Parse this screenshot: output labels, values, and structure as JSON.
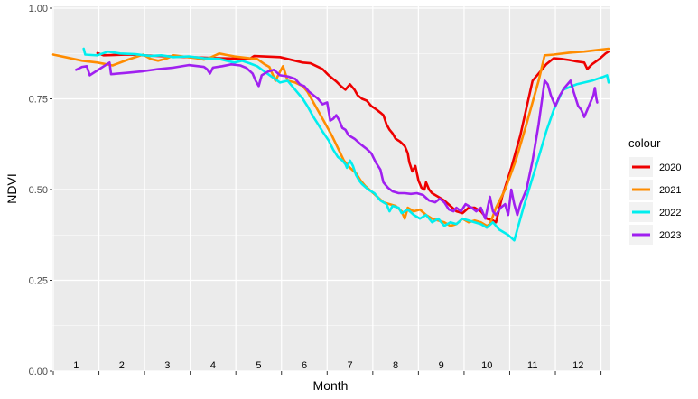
{
  "chart_data": {
    "type": "line",
    "title": "",
    "xlabel": "Month",
    "ylabel": "NDVI",
    "ylim": [
      0,
      1
    ],
    "yticks": [
      "0.00",
      "0.25",
      "0.50",
      "0.75",
      "1.00"
    ],
    "ytick_values": [
      0,
      0.25,
      0.5,
      0.75,
      1.0
    ],
    "xlim": [
      1,
      366
    ],
    "month_labels": [
      "1",
      "2",
      "3",
      "4",
      "5",
      "6",
      "7",
      "8",
      "9",
      "10",
      "11",
      "12"
    ],
    "month_label_positions": [
      16,
      46,
      76,
      106,
      136,
      166,
      196,
      226,
      256,
      286,
      316,
      346
    ],
    "month_boundaries": [
      31,
      61,
      91,
      121,
      151,
      181,
      211,
      241,
      271,
      301,
      331,
      361
    ],
    "grid": true,
    "legend": {
      "title": "colour",
      "position": "right"
    },
    "series": [
      {
        "name": "2020",
        "color": "#EE0000",
        "points": [
          [
            30,
            0.876
          ],
          [
            34,
            0.87
          ],
          [
            50,
            0.872
          ],
          [
            70,
            0.868
          ],
          [
            90,
            0.865
          ],
          [
            110,
            0.862
          ],
          [
            130,
            0.86
          ],
          [
            133,
            0.868
          ],
          [
            150,
            0.865
          ],
          [
            160,
            0.855
          ],
          [
            165,
            0.85
          ],
          [
            170,
            0.848
          ],
          [
            175,
            0.838
          ],
          [
            178,
            0.832
          ],
          [
            182,
            0.815
          ],
          [
            187,
            0.798
          ],
          [
            190,
            0.785
          ],
          [
            193,
            0.775
          ],
          [
            196,
            0.79
          ],
          [
            199,
            0.775
          ],
          [
            201,
            0.76
          ],
          [
            204,
            0.75
          ],
          [
            207,
            0.745
          ],
          [
            210,
            0.73
          ],
          [
            213,
            0.722
          ],
          [
            216,
            0.712
          ],
          [
            218,
            0.705
          ],
          [
            220,
            0.68
          ],
          [
            222,
            0.665
          ],
          [
            224,
            0.655
          ],
          [
            226,
            0.64
          ],
          [
            229,
            0.632
          ],
          [
            232,
            0.62
          ],
          [
            234,
            0.6
          ],
          [
            235,
            0.575
          ],
          [
            237,
            0.55
          ],
          [
            239,
            0.565
          ],
          [
            241,
            0.525
          ],
          [
            243,
            0.505
          ],
          [
            245,
            0.5
          ],
          [
            246,
            0.52
          ],
          [
            248,
            0.5
          ],
          [
            250,
            0.49
          ],
          [
            254,
            0.48
          ],
          [
            258,
            0.47
          ],
          [
            262,
            0.455
          ],
          [
            266,
            0.44
          ],
          [
            270,
            0.435
          ],
          [
            274,
            0.45
          ],
          [
            278,
            0.45
          ],
          [
            282,
            0.44
          ],
          [
            286,
            0.42
          ],
          [
            290,
            0.415
          ],
          [
            292,
            0.41
          ],
          [
            296,
            0.48
          ],
          [
            302,
            0.56
          ],
          [
            308,
            0.65
          ],
          [
            312,
            0.725
          ],
          [
            316,
            0.8
          ],
          [
            320,
            0.82
          ],
          [
            325,
            0.845
          ],
          [
            330,
            0.862
          ],
          [
            335,
            0.86
          ],
          [
            340,
            0.857
          ],
          [
            345,
            0.853
          ],
          [
            350,
            0.85
          ],
          [
            352,
            0.832
          ],
          [
            355,
            0.845
          ],
          [
            360,
            0.86
          ],
          [
            364,
            0.875
          ],
          [
            366,
            0.88
          ]
        ]
      },
      {
        "name": "2021",
        "color": "#FF8C00",
        "points": [
          [
            1,
            0.872
          ],
          [
            20,
            0.855
          ],
          [
            30,
            0.85
          ],
          [
            40,
            0.842
          ],
          [
            50,
            0.858
          ],
          [
            60,
            0.872
          ],
          [
            65,
            0.86
          ],
          [
            70,
            0.855
          ],
          [
            76,
            0.862
          ],
          [
            80,
            0.87
          ],
          [
            95,
            0.862
          ],
          [
            100,
            0.858
          ],
          [
            105,
            0.865
          ],
          [
            110,
            0.875
          ],
          [
            120,
            0.867
          ],
          [
            130,
            0.862
          ],
          [
            135,
            0.86
          ],
          [
            140,
            0.845
          ],
          [
            143,
            0.838
          ],
          [
            147,
            0.8
          ],
          [
            150,
            0.825
          ],
          [
            152,
            0.84
          ],
          [
            155,
            0.8
          ],
          [
            160,
            0.795
          ],
          [
            165,
            0.785
          ],
          [
            168,
            0.77
          ],
          [
            172,
            0.74
          ],
          [
            176,
            0.71
          ],
          [
            180,
            0.68
          ],
          [
            184,
            0.65
          ],
          [
            188,
            0.615
          ],
          [
            192,
            0.58
          ],
          [
            196,
            0.56
          ],
          [
            200,
            0.545
          ],
          [
            203,
            0.525
          ],
          [
            206,
            0.51
          ],
          [
            210,
            0.495
          ],
          [
            214,
            0.48
          ],
          [
            218,
            0.465
          ],
          [
            222,
            0.46
          ],
          [
            226,
            0.455
          ],
          [
            230,
            0.44
          ],
          [
            232,
            0.42
          ],
          [
            234,
            0.45
          ],
          [
            238,
            0.44
          ],
          [
            242,
            0.445
          ],
          [
            246,
            0.43
          ],
          [
            250,
            0.42
          ],
          [
            254,
            0.415
          ],
          [
            258,
            0.41
          ],
          [
            262,
            0.4
          ],
          [
            266,
            0.405
          ],
          [
            270,
            0.42
          ],
          [
            274,
            0.41
          ],
          [
            278,
            0.415
          ],
          [
            282,
            0.41
          ],
          [
            286,
            0.4
          ],
          [
            288,
            0.405
          ],
          [
            292,
            0.45
          ],
          [
            298,
            0.5
          ],
          [
            305,
            0.58
          ],
          [
            312,
            0.68
          ],
          [
            320,
            0.8
          ],
          [
            324,
            0.87
          ],
          [
            330,
            0.872
          ],
          [
            340,
            0.877
          ],
          [
            350,
            0.88
          ],
          [
            360,
            0.885
          ],
          [
            366,
            0.888
          ]
        ]
      },
      {
        "name": "2022",
        "color": "#00EEEE",
        "points": [
          [
            21,
            0.888
          ],
          [
            22,
            0.872
          ],
          [
            30,
            0.87
          ],
          [
            37,
            0.88
          ],
          [
            45,
            0.875
          ],
          [
            55,
            0.873
          ],
          [
            65,
            0.868
          ],
          [
            72,
            0.87
          ],
          [
            80,
            0.865
          ],
          [
            90,
            0.867
          ],
          [
            100,
            0.862
          ],
          [
            110,
            0.86
          ],
          [
            120,
            0.85
          ],
          [
            125,
            0.855
          ],
          [
            130,
            0.848
          ],
          [
            135,
            0.84
          ],
          [
            140,
            0.825
          ],
          [
            145,
            0.81
          ],
          [
            150,
            0.795
          ],
          [
            155,
            0.8
          ],
          [
            160,
            0.775
          ],
          [
            165,
            0.75
          ],
          [
            168,
            0.73
          ],
          [
            172,
            0.7
          ],
          [
            175,
            0.68
          ],
          [
            178,
            0.66
          ],
          [
            182,
            0.635
          ],
          [
            185,
            0.61
          ],
          [
            188,
            0.59
          ],
          [
            191,
            0.58
          ],
          [
            193,
            0.57
          ],
          [
            194,
            0.56
          ],
          [
            196,
            0.58
          ],
          [
            198,
            0.565
          ],
          [
            200,
            0.54
          ],
          [
            202,
            0.525
          ],
          [
            204,
            0.515
          ],
          [
            208,
            0.5
          ],
          [
            212,
            0.49
          ],
          [
            216,
            0.47
          ],
          [
            220,
            0.46
          ],
          [
            222,
            0.44
          ],
          [
            224,
            0.455
          ],
          [
            228,
            0.45
          ],
          [
            230,
            0.435
          ],
          [
            234,
            0.445
          ],
          [
            238,
            0.43
          ],
          [
            242,
            0.42
          ],
          [
            246,
            0.43
          ],
          [
            250,
            0.41
          ],
          [
            254,
            0.42
          ],
          [
            258,
            0.4
          ],
          [
            262,
            0.41
          ],
          [
            266,
            0.405
          ],
          [
            270,
            0.42
          ],
          [
            274,
            0.415
          ],
          [
            278,
            0.41
          ],
          [
            282,
            0.405
          ],
          [
            286,
            0.395
          ],
          [
            290,
            0.41
          ],
          [
            294,
            0.39
          ],
          [
            300,
            0.375
          ],
          [
            304,
            0.36
          ],
          [
            310,
            0.45
          ],
          [
            318,
            0.56
          ],
          [
            325,
            0.66
          ],
          [
            330,
            0.72
          ],
          [
            336,
            0.775
          ],
          [
            345,
            0.79
          ],
          [
            355,
            0.8
          ],
          [
            362,
            0.81
          ],
          [
            365,
            0.815
          ],
          [
            366,
            0.795
          ]
        ]
      },
      {
        "name": "2023",
        "color": "#A020F0",
        "points": [
          [
            16,
            0.83
          ],
          [
            20,
            0.838
          ],
          [
            23,
            0.84
          ],
          [
            25,
            0.815
          ],
          [
            38,
            0.85
          ],
          [
            39,
            0.818
          ],
          [
            50,
            0.822
          ],
          [
            60,
            0.826
          ],
          [
            70,
            0.832
          ],
          [
            80,
            0.836
          ],
          [
            90,
            0.843
          ],
          [
            100,
            0.838
          ],
          [
            102,
            0.832
          ],
          [
            104,
            0.82
          ],
          [
            106,
            0.836
          ],
          [
            112,
            0.84
          ],
          [
            118,
            0.845
          ],
          [
            124,
            0.842
          ],
          [
            128,
            0.835
          ],
          [
            132,
            0.82
          ],
          [
            134,
            0.8
          ],
          [
            136,
            0.785
          ],
          [
            138,
            0.815
          ],
          [
            142,
            0.825
          ],
          [
            146,
            0.83
          ],
          [
            150,
            0.815
          ],
          [
            155,
            0.812
          ],
          [
            160,
            0.805
          ],
          [
            163,
            0.79
          ],
          [
            166,
            0.785
          ],
          [
            169,
            0.77
          ],
          [
            172,
            0.76
          ],
          [
            175,
            0.75
          ],
          [
            178,
            0.735
          ],
          [
            181,
            0.74
          ],
          [
            183,
            0.69
          ],
          [
            185,
            0.695
          ],
          [
            187,
            0.705
          ],
          [
            189,
            0.69
          ],
          [
            191,
            0.67
          ],
          [
            193,
            0.665
          ],
          [
            195,
            0.65
          ],
          [
            199,
            0.64
          ],
          [
            203,
            0.625
          ],
          [
            207,
            0.612
          ],
          [
            210,
            0.6
          ],
          [
            213,
            0.575
          ],
          [
            216,
            0.555
          ],
          [
            218,
            0.52
          ],
          [
            221,
            0.505
          ],
          [
            224,
            0.495
          ],
          [
            228,
            0.49
          ],
          [
            232,
            0.49
          ],
          [
            236,
            0.488
          ],
          [
            240,
            0.49
          ],
          [
            244,
            0.485
          ],
          [
            248,
            0.47
          ],
          [
            252,
            0.465
          ],
          [
            255,
            0.475
          ],
          [
            258,
            0.465
          ],
          [
            261,
            0.445
          ],
          [
            264,
            0.44
          ],
          [
            266,
            0.45
          ],
          [
            269,
            0.44
          ],
          [
            272,
            0.46
          ],
          [
            276,
            0.45
          ],
          [
            279,
            0.44
          ],
          [
            282,
            0.45
          ],
          [
            285,
            0.42
          ],
          [
            288,
            0.48
          ],
          [
            290,
            0.44
          ],
          [
            292,
            0.43
          ],
          [
            295,
            0.45
          ],
          [
            298,
            0.46
          ],
          [
            300,
            0.43
          ],
          [
            302,
            0.5
          ],
          [
            304,
            0.46
          ],
          [
            306,
            0.43
          ],
          [
            308,
            0.46
          ],
          [
            312,
            0.5
          ],
          [
            316,
            0.58
          ],
          [
            320,
            0.68
          ],
          [
            324,
            0.8
          ],
          [
            326,
            0.79
          ],
          [
            328,
            0.76
          ],
          [
            331,
            0.73
          ],
          [
            334,
            0.76
          ],
          [
            337,
            0.78
          ],
          [
            339,
            0.79
          ],
          [
            341,
            0.8
          ],
          [
            343,
            0.77
          ],
          [
            346,
            0.73
          ],
          [
            348,
            0.72
          ],
          [
            350,
            0.7
          ],
          [
            352,
            0.72
          ],
          [
            354,
            0.74
          ],
          [
            356,
            0.76
          ],
          [
            357,
            0.78
          ],
          [
            358,
            0.75
          ],
          [
            358.5,
            0.74
          ]
        ]
      }
    ]
  }
}
